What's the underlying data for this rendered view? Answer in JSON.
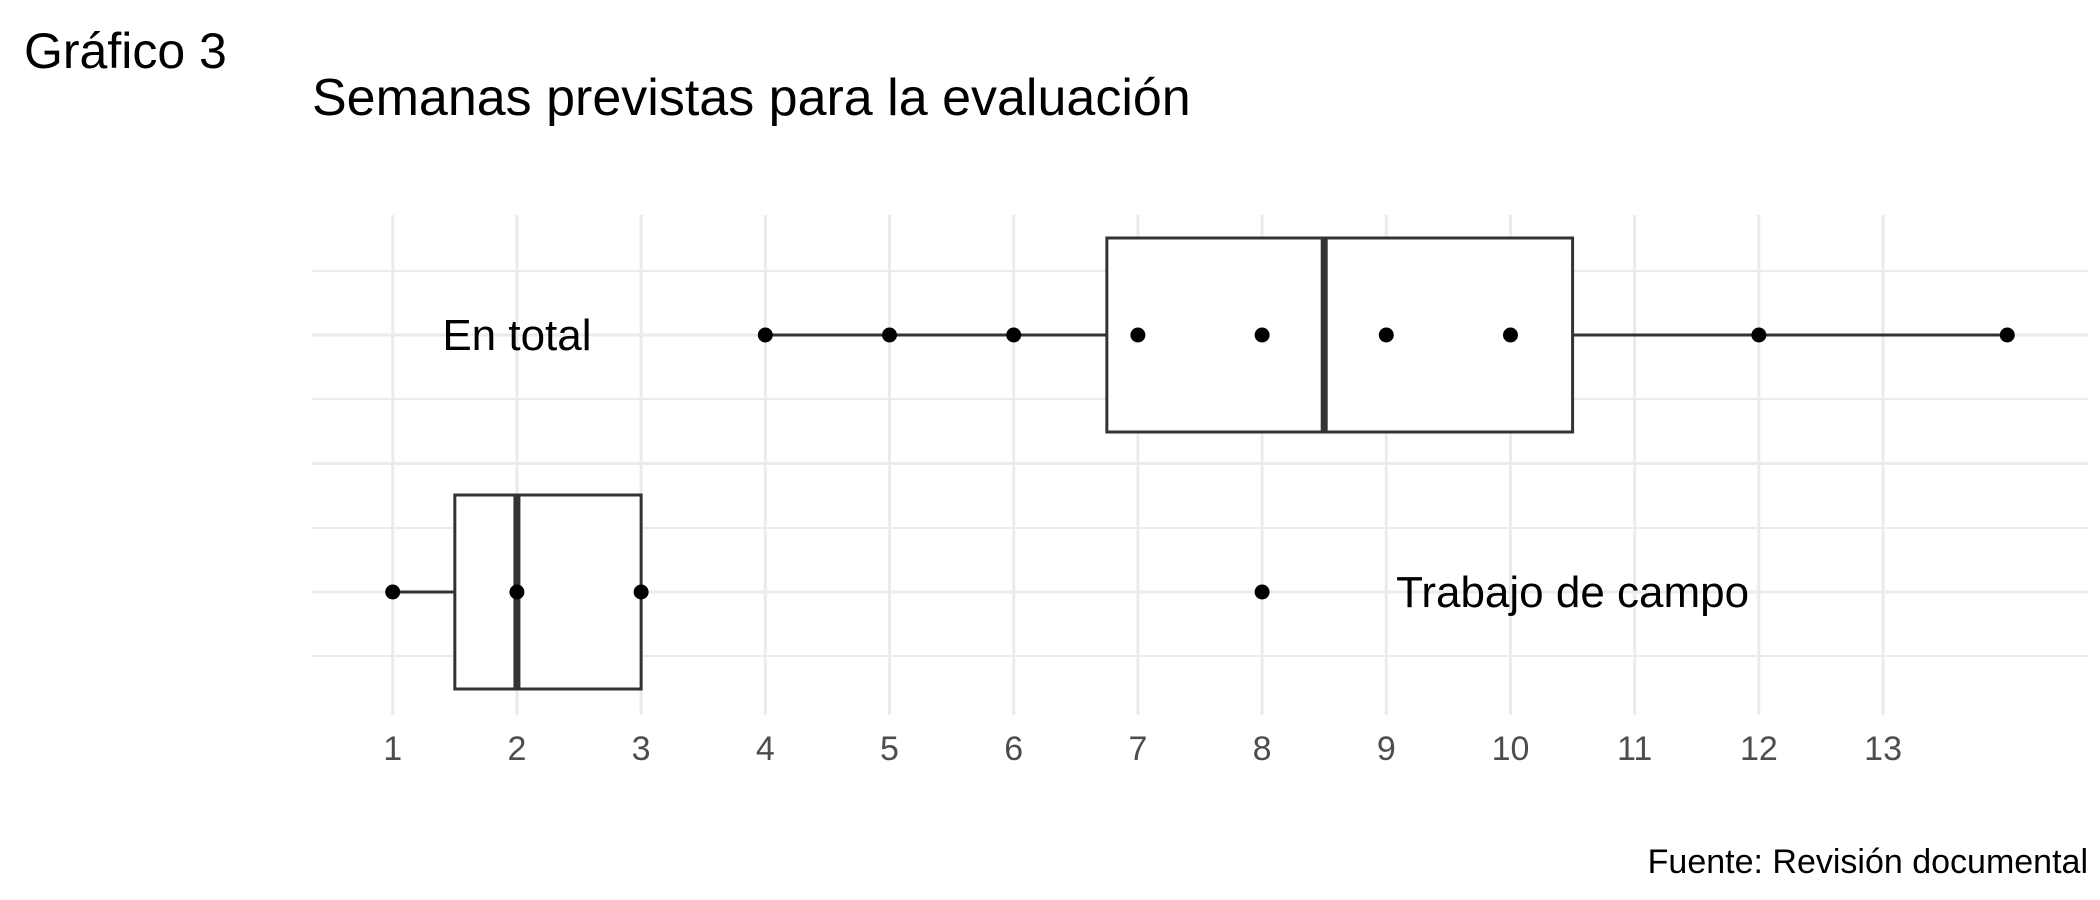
{
  "figure_label": "Gráfico 3",
  "source": "Fuente: Revisión documental",
  "chart_data": {
    "type": "boxplot",
    "title": "Semanas previstas para la evaluación",
    "xlabel": "",
    "ylabel": "",
    "xlim": [
      0.35,
      14.65
    ],
    "x_ticks": [
      1,
      2,
      3,
      4,
      5,
      6,
      7,
      8,
      9,
      10,
      11,
      12,
      13
    ],
    "grid": true,
    "legend": "none",
    "colors": {
      "grid": "#ebebeb",
      "box": "#333333",
      "point": "#000000"
    },
    "groups": [
      {
        "label": "En total",
        "min": 4,
        "q1": 6.75,
        "median": 8.5,
        "q3": 10.5,
        "max": 14,
        "points": [
          4,
          5,
          6,
          7,
          8,
          9,
          10,
          12,
          14
        ],
        "label_x": 2
      },
      {
        "label": "Trabajo de campo",
        "min": 1,
        "q1": 1.5,
        "median": 2,
        "q3": 3,
        "max": 3,
        "points": [
          1,
          2,
          3,
          8
        ],
        "label_x": 10.5
      }
    ]
  }
}
